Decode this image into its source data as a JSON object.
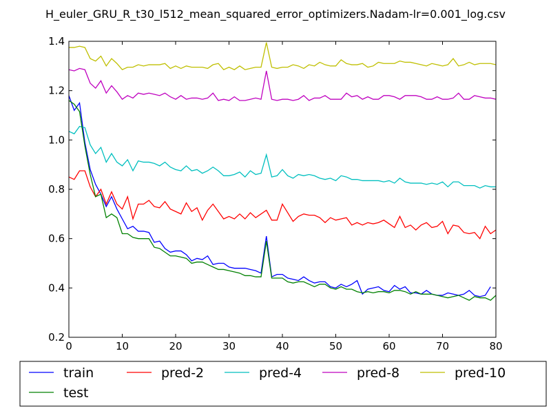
{
  "chart_data": {
    "type": "line",
    "title": "H_euler_GRU_R_t30_l512_mean_squared_error_optimizers.Nadam-lr=0.001_log.csv",
    "xlabel": "",
    "ylabel": "",
    "xlim": [
      0,
      80
    ],
    "ylim": [
      0.2,
      1.4
    ],
    "xticks": [
      0,
      10,
      20,
      30,
      40,
      50,
      60,
      70,
      80
    ],
    "yticks": [
      0.2,
      0.4,
      0.6,
      0.8,
      1.0,
      1.2,
      1.4
    ],
    "xtick_labels": [
      "0",
      "10",
      "20",
      "30",
      "40",
      "50",
      "60",
      "70",
      "80"
    ],
    "ytick_labels": [
      "0.2",
      "0.4",
      "0.6",
      "0.8",
      "1.0",
      "1.2",
      "1.4"
    ],
    "grid": false,
    "legend_position": "below",
    "series": [
      {
        "name": "train",
        "color": "#0000ff",
        "values": [
          1.18,
          1.12,
          1.15,
          0.99,
          0.88,
          0.82,
          0.78,
          0.73,
          0.77,
          0.72,
          0.68,
          0.64,
          0.65,
          0.63,
          0.63,
          0.625,
          0.585,
          0.59,
          0.56,
          0.545,
          0.55,
          0.55,
          0.535,
          0.51,
          0.52,
          0.515,
          0.53,
          0.495,
          0.5,
          0.5,
          0.485,
          0.48,
          0.48,
          0.48,
          0.475,
          0.47,
          0.46,
          0.61,
          0.445,
          0.455,
          0.455,
          0.44,
          0.435,
          0.43,
          0.445,
          0.43,
          0.42,
          0.425,
          0.425,
          0.405,
          0.4,
          0.415,
          0.405,
          0.415,
          0.43,
          0.375,
          0.395,
          0.4,
          0.405,
          0.39,
          0.385,
          0.41,
          0.395,
          0.405,
          0.38,
          0.38,
          0.375,
          0.39,
          0.375,
          0.37,
          0.37,
          0.38,
          0.375,
          0.37,
          0.375,
          0.39,
          0.37,
          0.365,
          0.37,
          0.405
        ]
      },
      {
        "name": "pred-2",
        "color": "#ff0000",
        "values": [
          0.85,
          0.84,
          0.875,
          0.875,
          0.81,
          0.77,
          0.8,
          0.74,
          0.79,
          0.74,
          0.72,
          0.77,
          0.68,
          0.74,
          0.74,
          0.755,
          0.73,
          0.725,
          0.75,
          0.72,
          0.71,
          0.7,
          0.745,
          0.71,
          0.725,
          0.675,
          0.715,
          0.74,
          0.71,
          0.68,
          0.69,
          0.68,
          0.7,
          0.68,
          0.705,
          0.685,
          0.7,
          0.715,
          0.675,
          0.675,
          0.74,
          0.705,
          0.67,
          0.69,
          0.7,
          0.695,
          0.695,
          0.685,
          0.665,
          0.685,
          0.675,
          0.68,
          0.685,
          0.655,
          0.665,
          0.655,
          0.665,
          0.66,
          0.665,
          0.675,
          0.66,
          0.645,
          0.69,
          0.645,
          0.655,
          0.635,
          0.655,
          0.665,
          0.645,
          0.65,
          0.67,
          0.62,
          0.655,
          0.65,
          0.625,
          0.62,
          0.625,
          0.6,
          0.65,
          0.62,
          0.635
        ]
      },
      {
        "name": "pred-4",
        "color": "#00bfbf",
        "values": [
          1.035,
          1.025,
          1.055,
          1.05,
          0.98,
          0.945,
          0.97,
          0.91,
          0.945,
          0.91,
          0.895,
          0.92,
          0.875,
          0.915,
          0.91,
          0.91,
          0.905,
          0.895,
          0.91,
          0.89,
          0.88,
          0.875,
          0.895,
          0.875,
          0.88,
          0.865,
          0.875,
          0.89,
          0.875,
          0.855,
          0.855,
          0.86,
          0.87,
          0.85,
          0.875,
          0.86,
          0.865,
          0.94,
          0.85,
          0.855,
          0.88,
          0.855,
          0.845,
          0.86,
          0.855,
          0.86,
          0.855,
          0.845,
          0.84,
          0.845,
          0.835,
          0.855,
          0.85,
          0.84,
          0.84,
          0.835,
          0.835,
          0.835,
          0.835,
          0.83,
          0.835,
          0.825,
          0.845,
          0.83,
          0.825,
          0.825,
          0.825,
          0.82,
          0.825,
          0.82,
          0.83,
          0.81,
          0.83,
          0.83,
          0.815,
          0.815,
          0.815,
          0.805,
          0.815,
          0.81,
          0.81
        ]
      },
      {
        "name": "pred-8",
        "color": "#bf00bf",
        "values": [
          1.285,
          1.28,
          1.29,
          1.285,
          1.23,
          1.21,
          1.24,
          1.19,
          1.22,
          1.195,
          1.165,
          1.18,
          1.17,
          1.19,
          1.185,
          1.19,
          1.185,
          1.18,
          1.19,
          1.175,
          1.165,
          1.18,
          1.165,
          1.17,
          1.17,
          1.165,
          1.17,
          1.19,
          1.16,
          1.165,
          1.16,
          1.175,
          1.16,
          1.16,
          1.165,
          1.17,
          1.165,
          1.28,
          1.165,
          1.16,
          1.165,
          1.165,
          1.16,
          1.165,
          1.18,
          1.16,
          1.17,
          1.17,
          1.18,
          1.165,
          1.165,
          1.165,
          1.19,
          1.175,
          1.18,
          1.165,
          1.175,
          1.165,
          1.165,
          1.18,
          1.18,
          1.175,
          1.165,
          1.18,
          1.18,
          1.18,
          1.175,
          1.165,
          1.165,
          1.175,
          1.165,
          1.165,
          1.17,
          1.19,
          1.165,
          1.165,
          1.18,
          1.175,
          1.17,
          1.17,
          1.165
        ]
      },
      {
        "name": "pred-10",
        "color": "#bfbf00",
        "values": [
          1.375,
          1.375,
          1.38,
          1.375,
          1.33,
          1.32,
          1.34,
          1.3,
          1.33,
          1.31,
          1.285,
          1.295,
          1.295,
          1.305,
          1.3,
          1.305,
          1.305,
          1.305,
          1.31,
          1.29,
          1.3,
          1.29,
          1.3,
          1.295,
          1.295,
          1.295,
          1.29,
          1.305,
          1.31,
          1.285,
          1.295,
          1.285,
          1.3,
          1.285,
          1.29,
          1.295,
          1.295,
          1.395,
          1.295,
          1.29,
          1.295,
          1.295,
          1.305,
          1.3,
          1.29,
          1.305,
          1.3,
          1.315,
          1.305,
          1.3,
          1.3,
          1.325,
          1.31,
          1.305,
          1.305,
          1.31,
          1.295,
          1.3,
          1.315,
          1.31,
          1.31,
          1.31,
          1.32,
          1.315,
          1.315,
          1.31,
          1.305,
          1.3,
          1.31,
          1.305,
          1.3,
          1.305,
          1.33,
          1.3,
          1.305,
          1.315,
          1.305,
          1.31,
          1.31,
          1.31,
          1.305
        ]
      },
      {
        "name": "test",
        "color": "#008000",
        "values": [
          1.16,
          1.145,
          1.115,
          0.975,
          0.86,
          0.77,
          0.78,
          0.685,
          0.7,
          0.685,
          0.62,
          0.62,
          0.605,
          0.6,
          0.6,
          0.6,
          0.565,
          0.56,
          0.545,
          0.53,
          0.53,
          0.525,
          0.52,
          0.5,
          0.505,
          0.505,
          0.495,
          0.485,
          0.475,
          0.475,
          0.47,
          0.465,
          0.46,
          0.45,
          0.45,
          0.445,
          0.445,
          0.59,
          0.44,
          0.44,
          0.44,
          0.425,
          0.42,
          0.425,
          0.425,
          0.415,
          0.405,
          0.415,
          0.415,
          0.4,
          0.395,
          0.405,
          0.395,
          0.395,
          0.385,
          0.38,
          0.385,
          0.38,
          0.385,
          0.385,
          0.38,
          0.39,
          0.39,
          0.385,
          0.375,
          0.385,
          0.375,
          0.375,
          0.375,
          0.37,
          0.365,
          0.36,
          0.365,
          0.37,
          0.36,
          0.35,
          0.365,
          0.36,
          0.36,
          0.35,
          0.37
        ]
      }
    ],
    "legend_order": [
      "train",
      "pred-2",
      "pred-4",
      "pred-8",
      "pred-10",
      "test"
    ]
  }
}
